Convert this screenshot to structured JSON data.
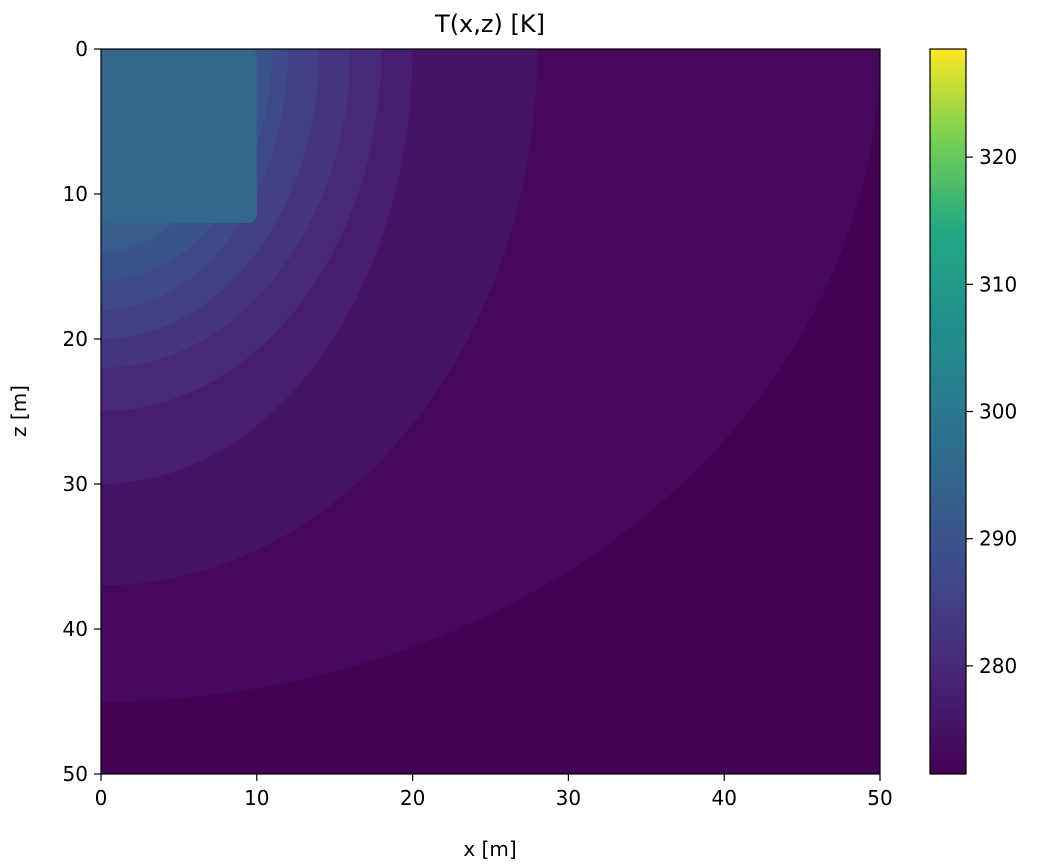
{
  "chart_data": {
    "type": "heatmap",
    "subtype": "filled-contour",
    "title": "T(x,z) [K]",
    "xlabel": "x [m]",
    "ylabel": "z [m]",
    "xlim": [
      0,
      50
    ],
    "ylim": [
      0,
      50
    ],
    "y_axis_inverted": true,
    "x_ticks": [
      0,
      10,
      20,
      30,
      40,
      50
    ],
    "y_ticks": [
      0,
      10,
      20,
      30,
      40,
      50
    ],
    "colormap": "viridis",
    "colorbar": {
      "range": [
        271.5,
        328.5
      ],
      "ticks": [
        280,
        290,
        300,
        310,
        320
      ],
      "level_step": 2.5,
      "placement": "right"
    },
    "hot_region": {
      "x_range": [
        0,
        10
      ],
      "z_range": [
        0,
        12
      ],
      "approx_value": 295
    },
    "background_value": 272,
    "contours": [
      {
        "level": 292.5,
        "x_extent": 9,
        "z_extent": 14
      },
      {
        "level": 290,
        "x_extent": 11,
        "z_extent": 16
      },
      {
        "level": 287.5,
        "x_extent": 12,
        "z_extent": 18
      },
      {
        "level": 285,
        "x_extent": 14,
        "z_extent": 20
      },
      {
        "level": 282.5,
        "x_extent": 16,
        "z_extent": 22
      },
      {
        "level": 280,
        "x_extent": 18,
        "z_extent": 25
      },
      {
        "level": 277.5,
        "x_extent": 20,
        "z_extent": 30
      },
      {
        "level": 275,
        "x_extent": 28,
        "z_extent": 37
      },
      {
        "level": 273,
        "x_extent": 50,
        "z_extent": 45
      }
    ]
  }
}
